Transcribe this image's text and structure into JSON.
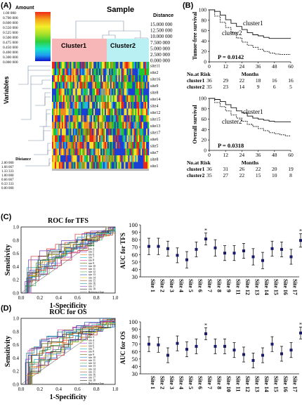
{
  "panelA": {
    "label": "(A)",
    "legend_title": "Amount",
    "legend_ticks": [
      "1.00 000",
      "0.700 000",
      "0.600 000",
      "0.550 000",
      "0.525 000",
      "0.500 000",
      "0.475 000",
      "0.450 000",
      "0.400 000",
      "0.300 000",
      "0.000 000"
    ],
    "sample_title": "Sample",
    "distance_title": "Distance",
    "distance_ticks": [
      "15.000 000",
      "12.500 000",
      "10.000 000",
      "7.500 000",
      "5.000 000",
      "2.500 000",
      "0.000 000"
    ],
    "cluster1": "Cluster1",
    "cluster2": "Cluster2",
    "variables_title": "Variables",
    "rows": [
      "site11",
      "site2",
      "site16",
      "site9",
      "site8",
      "site14",
      "site4",
      "site12",
      "site15",
      "site13",
      "site17",
      "site6",
      "site5",
      "site7",
      "site8",
      "site1"
    ],
    "left_distance_title": "Distance",
    "left_distance_ticks": [
      "2.00 000",
      "1.66 667",
      "1.33 333",
      "1.00 000",
      "0.66 667",
      "0.33 333",
      "0.00 000"
    ]
  },
  "panelB": {
    "label": "(B)",
    "top": {
      "ylabel": "Tumor-free survival",
      "p": "P = 0.0142",
      "c1": "cluster1",
      "c2": "cluster2",
      "yticks": [
        "100",
        "80",
        "60",
        "40",
        "20",
        "0"
      ],
      "xticks": [
        "0",
        "12",
        "24",
        "36",
        "48",
        "60"
      ],
      "months": "Months",
      "risk_title": "No.at Risk",
      "risk1_label": "cluster1",
      "risk1": [
        "36",
        "29",
        "22",
        "18",
        "16",
        "16"
      ],
      "risk2_label": "cluster2",
      "risk2": [
        "35",
        "23",
        "14",
        "9",
        "6",
        "5"
      ]
    },
    "bottom": {
      "ylabel": "Overall survival",
      "p": "P = 0.0318",
      "c1": "cluster1",
      "c2": "cluster2",
      "yticks": [
        "100",
        "80",
        "60",
        "40",
        "20",
        "0"
      ],
      "xticks": [
        "0",
        "12",
        "24",
        "36",
        "48",
        "60"
      ],
      "months": "Months",
      "risk_title": "No.at Risk",
      "risk1_label": "cluster1",
      "risk1": [
        "36",
        "31",
        "26",
        "22",
        "20",
        "19"
      ],
      "risk2_label": "cluster2",
      "risk2": [
        "35",
        "27",
        "22",
        "15",
        "10",
        "8"
      ]
    }
  },
  "panelC": {
    "label": "(C)",
    "roc_title": "ROC for TFS",
    "ylabel": "Sensitivity",
    "xlabel": "1-Specificity",
    "ticks": [
      "0.0",
      "0.2",
      "0.4",
      "0.6",
      "0.8",
      "1.0"
    ],
    "legend": [
      "site 1",
      "site 2",
      "site 3",
      "site 4",
      "site 5",
      "site 6",
      "site 7",
      "site 8",
      "site 9",
      "site 10",
      "site 11",
      "site 12",
      "site 13",
      "site 14",
      "site 15",
      "site 16",
      "site 17",
      "site 18",
      "Reference line"
    ],
    "auc_ylabel": "AUC for TFS",
    "auc_yticks": [
      "100",
      "90",
      "80",
      "70",
      "60",
      "50",
      "40",
      "30"
    ],
    "sites": [
      "Site 1",
      "Site 2",
      "Site 3",
      "Site 4",
      "Site 5",
      "Site 6",
      "Site 7",
      "Site 8",
      "Site 9",
      "Site 11",
      "Site 12",
      "Site 13",
      "Site 14",
      "Site 15",
      "Site 16",
      "Site 17",
      "Site 18"
    ]
  },
  "panelD": {
    "label": "(D)",
    "roc_title": "ROC for OS",
    "ylabel": "Sensitivity",
    "xlabel": "1-Specificity",
    "ticks": [
      "0.0",
      "0.2",
      "0.4",
      "0.6",
      "0.8",
      "1.0"
    ],
    "legend": [
      "site 1",
      "site 2",
      "site 3",
      "site 4",
      "site 5",
      "site 6",
      "site 7",
      "site 8",
      "site 9",
      "site 10",
      "site 11",
      "site 12",
      "site 13",
      "site 14",
      "site 15",
      "site 16",
      "site 17",
      "site 18",
      "Reference line"
    ],
    "auc_ylabel": "AUC for OS",
    "auc_yticks": [
      "100",
      "90",
      "80",
      "70",
      "60",
      "50",
      "40",
      "30"
    ],
    "sites": [
      "Site 1",
      "Site 2",
      "Site 3",
      "Site 4",
      "Site 5",
      "Site 6",
      "Site 7",
      "Site 8",
      "Site 10",
      "Site 11",
      "Site 12",
      "Site 13",
      "Site 14",
      "Site 15",
      "Site 16",
      "Site 17",
      "Site 18"
    ]
  },
  "chart_data": [
    {
      "type": "line",
      "title": "",
      "xlabel": "Months",
      "ylabel": "Tumor-free survival",
      "xlim": [
        0,
        60
      ],
      "ylim": [
        0,
        100
      ],
      "series": [
        {
          "name": "cluster1",
          "x": [
            0,
            4,
            8,
            12,
            16,
            20,
            24,
            28,
            32,
            36,
            40,
            44,
            48,
            52,
            56,
            60
          ],
          "y": [
            100,
            97,
            90,
            81,
            74,
            68,
            62,
            56,
            52,
            50,
            47,
            45,
            45,
            45,
            45,
            45
          ]
        },
        {
          "name": "cluster2",
          "x": [
            0,
            4,
            8,
            12,
            16,
            20,
            24,
            28,
            32,
            36,
            40,
            44,
            48,
            52,
            56,
            60
          ],
          "y": [
            100,
            88,
            76,
            66,
            56,
            46,
            38,
            32,
            28,
            24,
            20,
            17,
            15,
            14,
            14,
            14
          ]
        }
      ]
    },
    {
      "type": "line",
      "title": "",
      "xlabel": "Months",
      "ylabel": "Overall survival",
      "xlim": [
        0,
        60
      ],
      "ylim": [
        0,
        100
      ],
      "series": [
        {
          "name": "cluster1",
          "x": [
            0,
            4,
            8,
            12,
            16,
            20,
            24,
            28,
            32,
            36,
            40,
            44,
            48,
            52,
            56,
            60
          ],
          "y": [
            100,
            98,
            94,
            88,
            82,
            76,
            72,
            66,
            62,
            60,
            58,
            56,
            55,
            55,
            55,
            55
          ]
        },
        {
          "name": "cluster2",
          "x": [
            0,
            4,
            8,
            12,
            16,
            20,
            24,
            28,
            32,
            36,
            40,
            44,
            48,
            52,
            56,
            60
          ],
          "y": [
            100,
            92,
            84,
            76,
            68,
            62,
            56,
            50,
            46,
            42,
            38,
            34,
            32,
            30,
            28,
            28
          ]
        }
      ]
    },
    {
      "type": "scatter",
      "title": "",
      "ylabel": "AUC for TFS",
      "ylim": [
        30,
        100
      ],
      "categories": [
        "Site 1",
        "Site 2",
        "Site 3",
        "Site 4",
        "Site 5",
        "Site 6",
        "Site 7",
        "Site 8",
        "Site 9",
        "Site 11",
        "Site 12",
        "Site 13",
        "Site 14",
        "Site 15",
        "Site 16",
        "Site 17",
        "Site 18"
      ],
      "values": [
        71,
        71,
        68,
        59,
        53,
        67,
        81,
        69,
        62,
        62,
        65,
        57,
        52,
        68,
        67,
        57,
        79
      ],
      "error": [
        11,
        11,
        10,
        10,
        11,
        10,
        8,
        11,
        10,
        10,
        10,
        11,
        11,
        10,
        10,
        10,
        9
      ],
      "significant": [
        false,
        false,
        false,
        false,
        false,
        false,
        true,
        false,
        false,
        false,
        false,
        false,
        false,
        false,
        false,
        false,
        true
      ]
    },
    {
      "type": "scatter",
      "title": "",
      "ylabel": "AUC for OS",
      "ylim": [
        30,
        100
      ],
      "categories": [
        "Site 1",
        "Site 2",
        "Site 3",
        "Site 4",
        "Site 5",
        "Site 6",
        "Site 7",
        "Site 8",
        "Site 10",
        "Site 11",
        "Site 12",
        "Site 13",
        "Site 14",
        "Site 15",
        "Site 16",
        "Site 17",
        "Site 18"
      ],
      "values": [
        70,
        69,
        55,
        71,
        63,
        67,
        84,
        67,
        67,
        62,
        56,
        48,
        55,
        70,
        57,
        62,
        85
      ],
      "error": [
        10,
        10,
        10,
        10,
        10,
        10,
        8,
        10,
        10,
        10,
        10,
        10,
        10,
        10,
        10,
        10,
        8
      ],
      "significant": [
        false,
        false,
        false,
        false,
        false,
        false,
        true,
        false,
        false,
        false,
        false,
        false,
        false,
        false,
        false,
        false,
        true
      ]
    }
  ],
  "colors": {
    "cluster1_box": "#f7b7b8",
    "cluster2_box": "#b9f0f4",
    "legend_gradient": [
      "#0a12c8",
      "#1f9ef0",
      "#19e5c8",
      "#2fcf3a",
      "#a8e02a",
      "#f2f02a",
      "#f5a41c",
      "#f02818"
    ],
    "heat": [
      "#1b3fd4",
      "#21c62b",
      "#f5e22a",
      "#f08a1c",
      "#e82818",
      "#1fb6e0"
    ],
    "point": "#1a1a6a"
  }
}
